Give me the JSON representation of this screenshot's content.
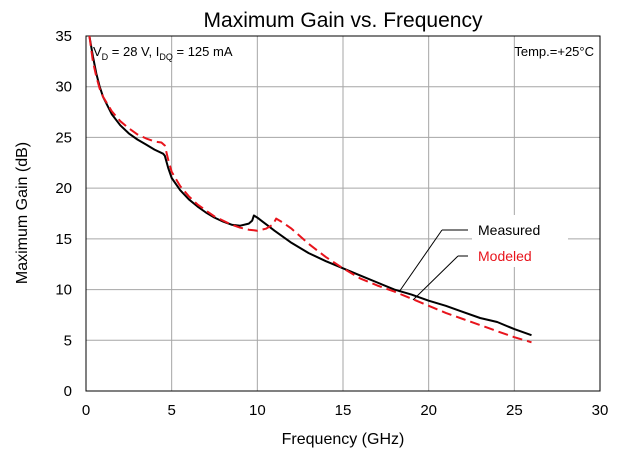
{
  "chart_data": {
    "type": "line",
    "title": "Maximum Gain vs. Frequency",
    "xlabel": "Frequency (GHz)",
    "ylabel": "Maximum Gain (dB)",
    "xlim": [
      0,
      30
    ],
    "ylim": [
      0,
      35
    ],
    "xticks": [
      0,
      5,
      10,
      15,
      20,
      25,
      30
    ],
    "yticks": [
      0,
      5,
      10,
      15,
      20,
      25,
      30,
      35
    ],
    "grid": true,
    "conditions": {
      "vd_main": "V",
      "vd_sub": "D",
      "vd_value": " = 28 V, ",
      "idq_main": "I",
      "idq_sub": "DQ",
      "idq_value": " = 125 mA"
    },
    "temperature": "Temp.=+25°C",
    "series": [
      {
        "name": "Measured",
        "color": "#000000",
        "dash": "solid",
        "x": [
          0.2,
          0.4,
          0.6,
          0.8,
          1.0,
          1.5,
          2.0,
          2.5,
          3.0,
          3.5,
          4.0,
          4.5,
          4.6,
          4.8,
          5.0,
          5.5,
          6.0,
          6.5,
          7.0,
          7.5,
          8.0,
          8.5,
          9.0,
          9.5,
          9.7,
          9.8,
          10.0,
          10.3,
          10.7,
          11.0,
          12.0,
          13.0,
          14.0,
          15.0,
          16.0,
          17.0,
          18.0,
          19.0,
          20.0,
          21.0,
          22.0,
          23.0,
          24.0,
          25.0,
          26.0
        ],
        "y": [
          35.0,
          33.0,
          31.3,
          30.0,
          29.0,
          27.3,
          26.2,
          25.4,
          24.8,
          24.3,
          23.8,
          23.4,
          23.2,
          22.0,
          21.0,
          19.8,
          18.9,
          18.2,
          17.6,
          17.1,
          16.7,
          16.4,
          16.3,
          16.5,
          16.8,
          17.3,
          17.1,
          16.7,
          16.2,
          15.8,
          14.6,
          13.6,
          12.8,
          12.1,
          11.4,
          10.7,
          10.0,
          9.5,
          8.9,
          8.4,
          7.8,
          7.2,
          6.8,
          6.1,
          5.5
        ]
      },
      {
        "name": "Modeled",
        "color": "#e8141c",
        "dash": "dashed",
        "x": [
          0.2,
          0.4,
          0.6,
          0.8,
          1.0,
          1.5,
          2.0,
          2.5,
          3.0,
          3.5,
          4.0,
          4.4,
          4.6,
          4.8,
          5.0,
          5.5,
          6.0,
          6.5,
          7.0,
          7.5,
          8.0,
          8.5,
          9.0,
          9.5,
          10.0,
          10.5,
          10.9,
          11.1,
          11.5,
          12.0,
          13.0,
          14.0,
          15.0,
          16.0,
          17.0,
          18.0,
          19.0,
          20.0,
          21.0,
          22.0,
          23.0,
          24.0,
          25.0,
          26.0
        ],
        "y": [
          35.0,
          32.5,
          31.0,
          29.8,
          29.0,
          27.6,
          26.6,
          25.9,
          25.3,
          24.9,
          24.6,
          24.5,
          24.2,
          22.8,
          21.6,
          20.2,
          19.2,
          18.4,
          17.8,
          17.2,
          16.8,
          16.4,
          16.1,
          15.9,
          15.8,
          16.0,
          16.4,
          17.0,
          16.6,
          16.0,
          14.5,
          13.2,
          12.1,
          11.1,
          10.4,
          9.8,
          9.1,
          8.4,
          7.7,
          7.1,
          6.5,
          5.9,
          5.3,
          4.8
        ]
      }
    ]
  }
}
